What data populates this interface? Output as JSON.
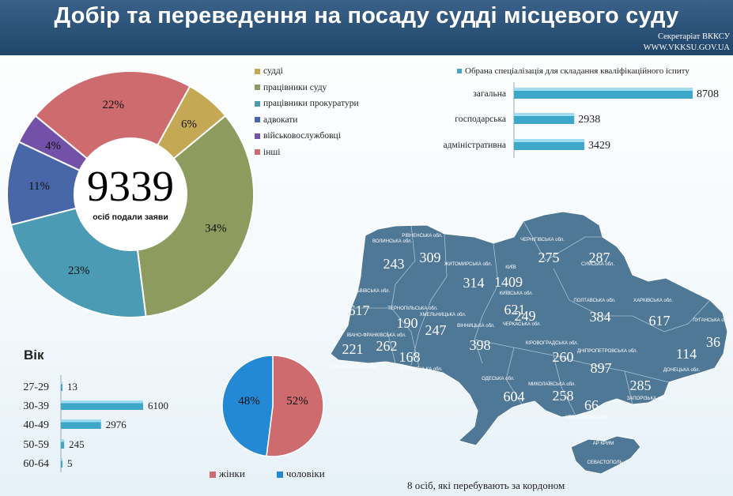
{
  "header": {
    "title": "Добір та переведення на посаду судді місцевого суду",
    "secretariat": "Секретаріат ВККСУ",
    "website": "WWW.VKKSU.GOV.UA"
  },
  "chart_data": [
    {
      "type": "pie",
      "center_total": "9339",
      "center_caption": "осіб подали заяви",
      "categories": [
        "судді",
        "працівники суду",
        "працівники прокуратури",
        "адвокати",
        "військовослужбовці",
        "інші"
      ],
      "values": [
        6,
        34,
        23,
        11,
        4,
        22
      ],
      "labels": [
        "6%",
        "34%",
        "23%",
        "11%",
        "4%",
        "22%"
      ],
      "colors": [
        "#c4a854",
        "#8e9b5e",
        "#4a9bb3",
        "#4867a8",
        "#7451a8",
        "#cd6b6e"
      ],
      "legend": "right"
    },
    {
      "type": "bar",
      "orientation": "horizontal",
      "legend_label": "Обрана спеціалізація  для складання кваліфікаційного  іспиту",
      "categories": [
        "загальна",
        "господарська",
        "адміністративна"
      ],
      "values": [
        8708,
        2938,
        3429
      ],
      "color": "#3fa7c9"
    },
    {
      "type": "bar",
      "orientation": "horizontal",
      "title": "Вік",
      "categories": [
        "27-29",
        "30-39",
        "40-49",
        "50-59",
        "60-64"
      ],
      "values": [
        13,
        6100,
        2976,
        245,
        5
      ],
      "color": "#3fa7c9"
    },
    {
      "type": "pie",
      "categories": [
        "жінки",
        "чоловіки"
      ],
      "values": [
        52,
        48
      ],
      "labels": [
        "52%",
        "48%"
      ],
      "colors": [
        "#cd6b6e",
        "#2389d4"
      ],
      "legend": "bottom"
    },
    {
      "type": "map",
      "color": "#4f7896",
      "regions": [
        {
          "name": "ВОЛИНСЬКА обл.",
          "value": 243
        },
        {
          "name": "РІВНЕНСЬКА обл.",
          "value": 309
        },
        {
          "name": "ЖИТОМИРСЬКА обл.",
          "value": 314
        },
        {
          "name": "КИЇВ",
          "value": 1409
        },
        {
          "name": "КИЇВСЬКА обл.",
          "value": 621
        },
        {
          "name": "ЧЕРНІГІВСЬКА обл.",
          "value": 275
        },
        {
          "name": "СУМСЬКА обл.",
          "value": 287
        },
        {
          "name": "ЛЬВІВСЬКА обл.",
          "value": 617
        },
        {
          "name": "ТЕРНОПІЛЬСЬКА обл.",
          "value": 190
        },
        {
          "name": "ХМЕЛЬНИЦЬКА обл.",
          "value": 247
        },
        {
          "name": "ВІННИЦЬКА обл.",
          "value": 398
        },
        {
          "name": "ЧЕРКАСЬКА обл.",
          "value": 249
        },
        {
          "name": "ПОЛТАВСЬКА обл.",
          "value": 384
        },
        {
          "name": "ХАРКІВСЬКА обл.",
          "value": 617
        },
        {
          "name": "ЛУГАНСЬКА обл.",
          "value": 36
        },
        {
          "name": "ДОНЕЦЬКА обл.",
          "value": 114
        },
        {
          "name": "ІВАНО-ФРАНКІВСЬКА обл.",
          "value": 262
        },
        {
          "name": "ЗАКАРПАТСЬКА обл.",
          "value": 221
        },
        {
          "name": "ЧЕРНІВЕЦЬКА обл.",
          "value": 168
        },
        {
          "name": "КІРОВОГРАДСЬКА обл.",
          "value": 260
        },
        {
          "name": "ДНІПРОПЕТРОВСЬКА обл.",
          "value": 897
        },
        {
          "name": "ЗАПОРІЗЬКА обл.",
          "value": 285
        },
        {
          "name": "ОДЕСЬКА обл.",
          "value": 604
        },
        {
          "name": "МИКОЛАЇВСЬКА обл.",
          "value": 258
        },
        {
          "name": "ХЕРСОНСЬКА обл.",
          "value": 66
        },
        {
          "name": "АР КРИМ",
          "value": null
        },
        {
          "name": "СЕВАСТОПОЛЬ",
          "value": null
        }
      ],
      "note": "8 осіб, які перебувають за кордоном"
    }
  ]
}
